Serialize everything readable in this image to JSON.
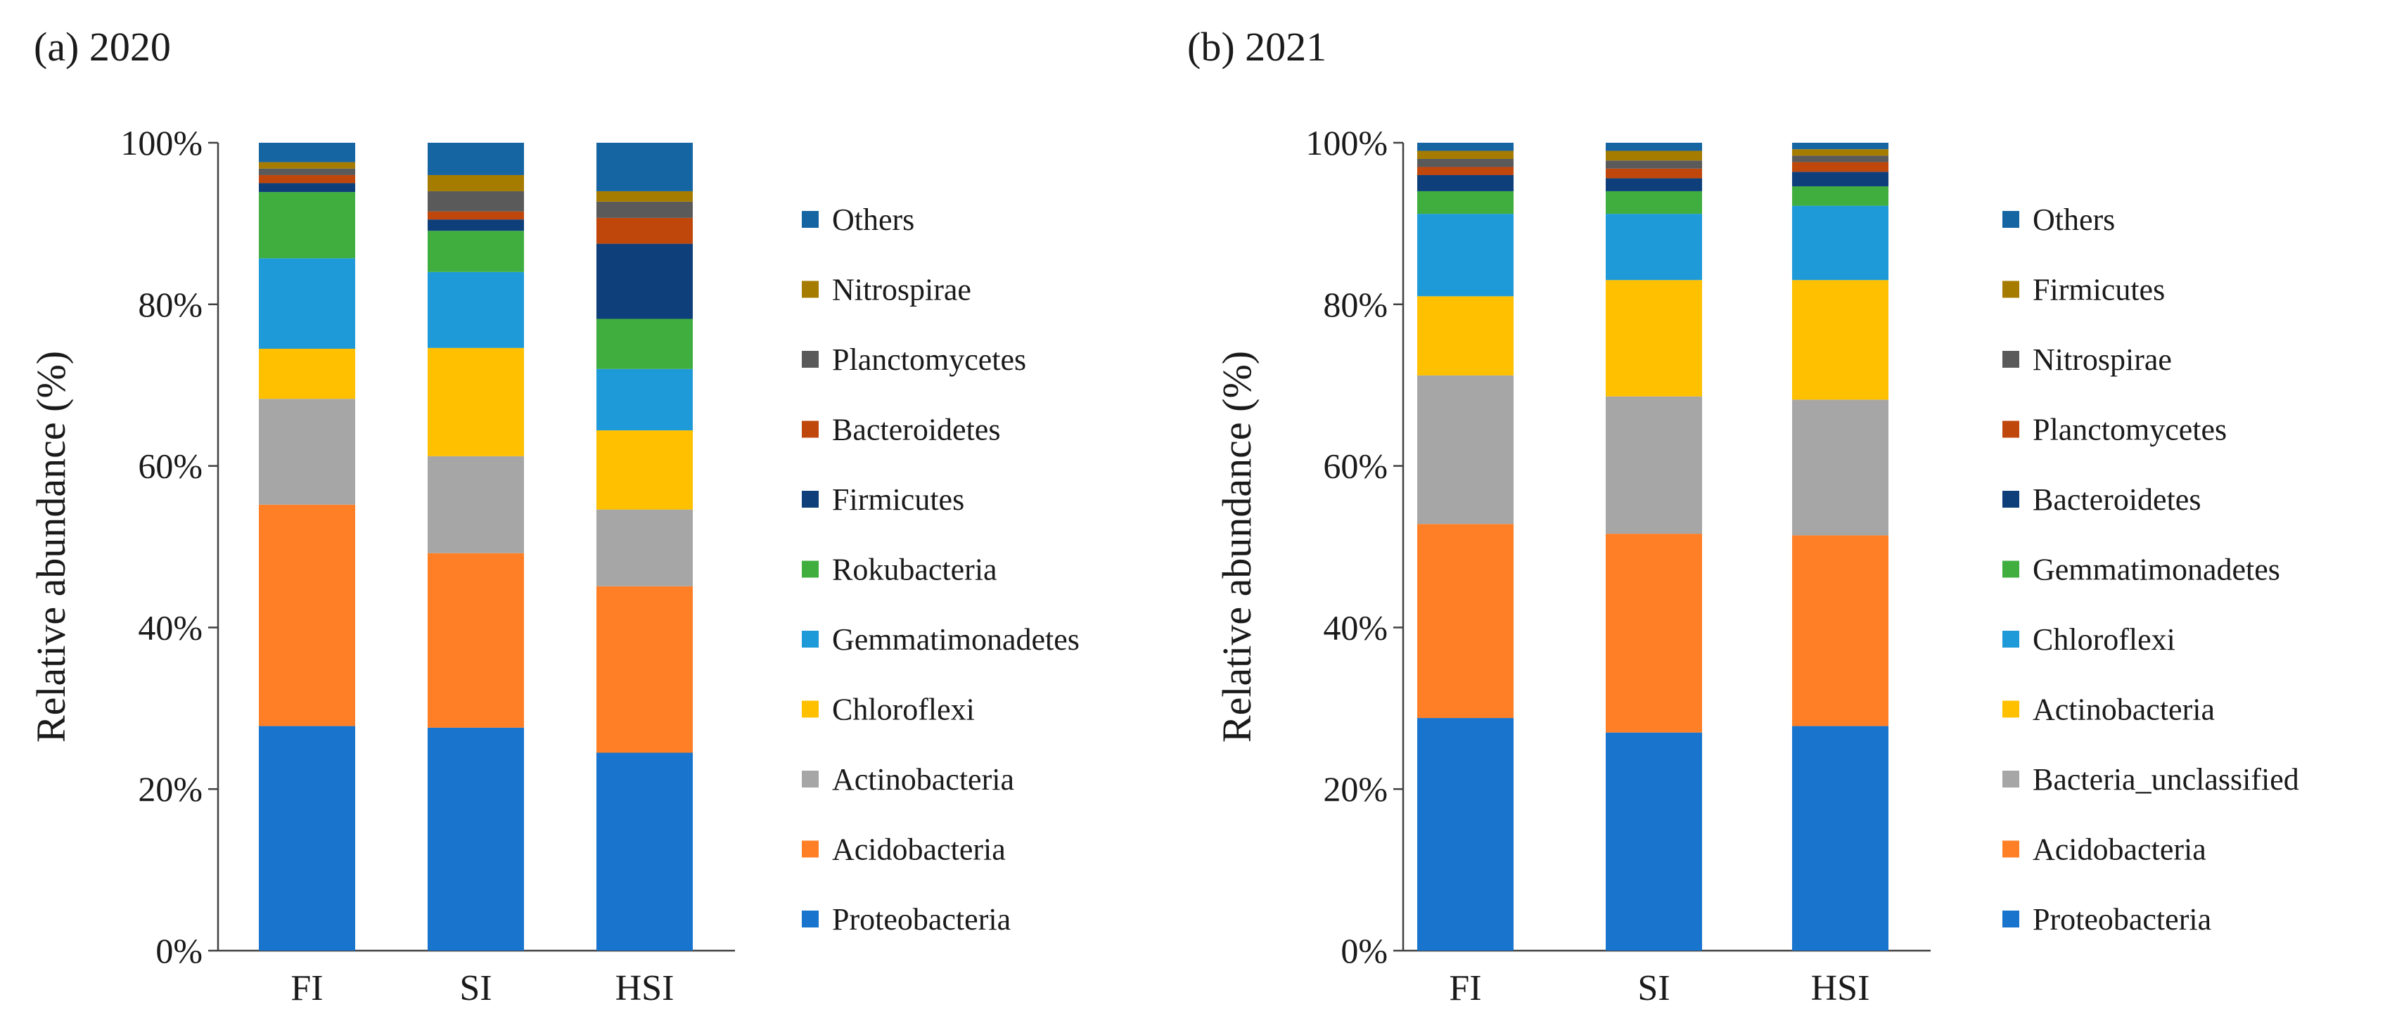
{
  "colors": {
    "Proteobacteria": "#1874cd",
    "Acidobacteria": "#ff7f27",
    "Actinobacteria": "#a6a6a6",
    "Bacteria_unclassified": "#a6a6a6",
    "Chloroflexi": "#ffc000",
    "Gemmatimonadetes": "#1f9ad8",
    "Rokubacteria": "#3fae3f",
    "Firmicutes": "#0e3f7a",
    "Bacteroidetes": "#c0470c",
    "Planctomycetes": "#5a5a5a",
    "Nitrospirae": "#a67c00",
    "Others": "#1565a3"
  },
  "chart_data": [
    {
      "type": "bar",
      "stacked": true,
      "title": "(a) 2020",
      "xlabel": "",
      "ylabel": "Relative abundance (%)",
      "ylim": [
        0,
        100
      ],
      "yticks": [
        "0%",
        "20%",
        "40%",
        "60%",
        "80%",
        "100%"
      ],
      "categories": [
        "FI",
        "SI",
        "HSI"
      ],
      "legend_position": "right",
      "series": [
        {
          "name": "Proteobacteria",
          "color_key": "Proteobacteria",
          "values": [
            27.8,
            27.6,
            24.5
          ]
        },
        {
          "name": "Acidobacteria",
          "color_key": "Acidobacteria",
          "values": [
            27.4,
            21.6,
            20.6
          ]
        },
        {
          "name": "Actinobacteria",
          "color_key": "Actinobacteria",
          "values": [
            13.1,
            12.0,
            9.5
          ]
        },
        {
          "name": "Chloroflexi",
          "color_key": "Chloroflexi",
          "values": [
            6.2,
            13.4,
            9.8
          ]
        },
        {
          "name": "Gemmatimonadetes",
          "color_key": "Gemmatimonadetes",
          "values": [
            11.2,
            9.4,
            7.6
          ]
        },
        {
          "name": "Rokubacteria",
          "color_key": "Rokubacteria",
          "values": [
            8.2,
            5.1,
            6.2
          ]
        },
        {
          "name": "Firmicutes",
          "color_key": "Firmicutes",
          "values": [
            1.1,
            1.4,
            9.3
          ]
        },
        {
          "name": "Bacteroidetes",
          "color_key": "Bacteroidetes",
          "values": [
            1.0,
            1.0,
            3.2
          ]
        },
        {
          "name": "Planctomycetes",
          "color_key": "Planctomycetes",
          "values": [
            0.8,
            2.5,
            2.0
          ]
        },
        {
          "name": "Nitrospirae",
          "color_key": "Nitrospirae",
          "values": [
            0.8,
            2.0,
            1.3
          ]
        },
        {
          "name": "Others",
          "color_key": "Others",
          "values": [
            2.4,
            4.0,
            6.0
          ]
        }
      ]
    },
    {
      "type": "bar",
      "stacked": true,
      "title": "(b) 2021",
      "xlabel": "",
      "ylabel": "Relative abundance (%)",
      "ylim": [
        0,
        100
      ],
      "yticks": [
        "0%",
        "20%",
        "40%",
        "60%",
        "80%",
        "100%"
      ],
      "categories": [
        "FI",
        "SI",
        "HSI"
      ],
      "legend_position": "right",
      "series": [
        {
          "name": "Proteobacteria",
          "color_key": "Proteobacteria",
          "values": [
            28.8,
            27.0,
            27.8
          ]
        },
        {
          "name": "Acidobacteria",
          "color_key": "Acidobacteria",
          "values": [
            24.0,
            24.6,
            23.6
          ]
        },
        {
          "name": "Bacteria_unclassified",
          "color_key": "Bacteria_unclassified",
          "values": [
            18.4,
            17.0,
            16.8
          ]
        },
        {
          "name": "Actinobacteria",
          "color_key": "Chloroflexi",
          "values": [
            9.8,
            14.4,
            14.8
          ]
        },
        {
          "name": "Chloroflexi",
          "color_key": "Gemmatimonadetes",
          "values": [
            10.2,
            8.2,
            9.2
          ]
        },
        {
          "name": "Gemmatimonadetes",
          "color_key": "Rokubacteria",
          "values": [
            2.8,
            2.8,
            2.4
          ]
        },
        {
          "name": "Bacteroidetes",
          "color_key": "Firmicutes",
          "values": [
            2.0,
            1.6,
            1.8
          ]
        },
        {
          "name": "Planctomycetes",
          "color_key": "Bacteroidetes",
          "values": [
            1.0,
            1.2,
            1.2
          ]
        },
        {
          "name": "Nitrospirae",
          "color_key": "Planctomycetes",
          "values": [
            1.0,
            1.0,
            0.8
          ]
        },
        {
          "name": "Firmicutes",
          "color_key": "Nitrospirae",
          "values": [
            1.0,
            1.2,
            0.8
          ]
        },
        {
          "name": "Others",
          "color_key": "Others",
          "values": [
            1.0,
            1.0,
            0.8
          ]
        }
      ]
    }
  ]
}
